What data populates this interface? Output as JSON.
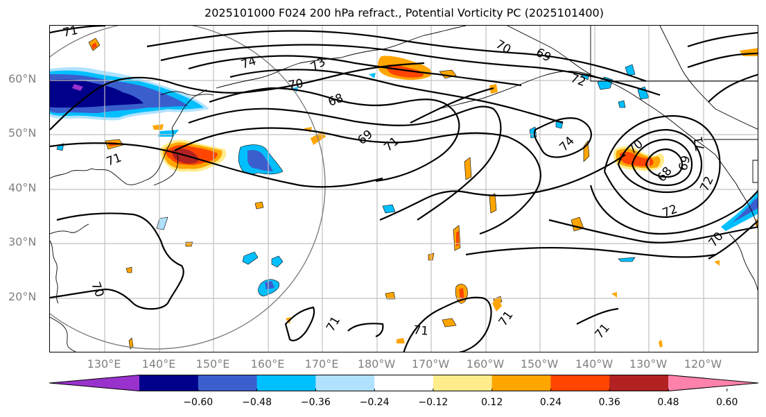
{
  "title": "2025101000 F024 200 hPa refract., Potential Vorticity PC (2025101400)",
  "map": {
    "projection_extent": "North Pacific",
    "lat_labels": [
      "60°N",
      "50°N",
      "40°N",
      "30°N",
      "20°N"
    ],
    "lon_labels": [
      "130°E",
      "140°E",
      "150°E",
      "160°E",
      "170°E",
      "180°W",
      "170°W",
      "160°W",
      "150°W",
      "140°W",
      "130°W",
      "120°W"
    ],
    "contour_labels": [
      "71",
      "74",
      "73",
      "70",
      "68",
      "69",
      "71",
      "70",
      "69",
      "72",
      "74",
      "70",
      "68",
      "69",
      "71",
      "72",
      "72",
      "70",
      "70",
      "71",
      "71",
      "71",
      "71",
      "71"
    ],
    "colors": {
      "gridline": "#c0c0c0",
      "contour": "#000000",
      "coastline": "#000000",
      "circle": "#808080"
    }
  },
  "colorbar": {
    "ticks": [
      "−0.60",
      "−0.48",
      "−0.36",
      "−0.24",
      "−0.12",
      "0.12",
      "0.24",
      "0.36",
      "0.48",
      "0.60"
    ],
    "levels": [
      -0.72,
      -0.6,
      -0.48,
      -0.36,
      -0.24,
      -0.12,
      0.12,
      0.24,
      0.36,
      0.48,
      0.6,
      0.72
    ],
    "colors": [
      "#9932cc",
      "#00008b",
      "#3a5fcd",
      "#00bfff",
      "#b0e2ff",
      "#ffffff",
      "#ffec8b",
      "#ffa500",
      "#ff4500",
      "#b22222",
      "#ff82ab"
    ],
    "extend": "both"
  }
}
